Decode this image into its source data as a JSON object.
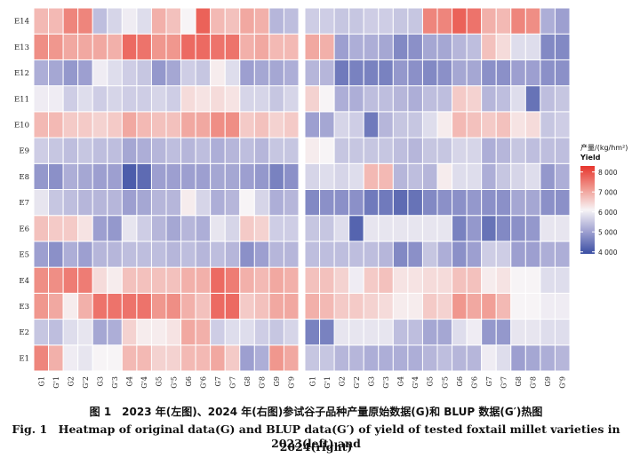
{
  "chart_data": [
    {
      "type": "heatmap",
      "title": "2023",
      "position": "left",
      "x_categories": [
        "G1",
        "G'1",
        "G2",
        "G'2",
        "G3",
        "G'3",
        "G4",
        "G'4",
        "G5",
        "G'5",
        "G6",
        "G'6",
        "G7",
        "G'7",
        "G8",
        "G'8",
        "G9",
        "G'9"
      ],
      "y_categories": [
        "E1",
        "E2",
        "E3",
        "E4",
        "E5",
        "E6",
        "E7",
        "E8",
        "E9",
        "E10",
        "E11",
        "E12",
        "E13",
        "E14"
      ],
      "values": [
        [
          7400,
          6900,
          6000,
          5900,
          6100,
          6100,
          6800,
          6800,
          6500,
          6500,
          6800,
          6800,
          7000,
          6600,
          5000,
          5200,
          7200,
          7000
        ],
        [
          5500,
          5400,
          5800,
          5900,
          5100,
          5200,
          6500,
          6200,
          6200,
          6300,
          7000,
          6900,
          5600,
          5800,
          5800,
          5600,
          5500,
          5700
        ],
        [
          7200,
          7000,
          6200,
          6900,
          7600,
          7600,
          7600,
          7600,
          7200,
          7300,
          6900,
          6700,
          7700,
          7700,
          6600,
          6700,
          7000,
          7000
        ],
        [
          7300,
          7300,
          7500,
          7500,
          6400,
          6200,
          6700,
          6700,
          6700,
          6700,
          6900,
          6900,
          7700,
          7500,
          6900,
          6800,
          7000,
          6900
        ],
        [
          5000,
          4800,
          5200,
          5000,
          5300,
          5300,
          5400,
          5400,
          5400,
          5300,
          5400,
          5300,
          5400,
          5300,
          4800,
          5000,
          5300,
          5300
        ],
        [
          6700,
          6600,
          6600,
          6300,
          5000,
          4900,
          5900,
          5600,
          5300,
          5100,
          5300,
          5200,
          5900,
          5700,
          6600,
          6500,
          5600,
          5600
        ],
        [
          5900,
          5500,
          5400,
          5300,
          5300,
          5300,
          5000,
          5100,
          5300,
          5300,
          6200,
          5700,
          5200,
          5300,
          6100,
          5700,
          5200,
          5300
        ],
        [
          4900,
          4800,
          5200,
          5100,
          5000,
          5000,
          4100,
          4300,
          5000,
          5000,
          5000,
          5000,
          5100,
          5100,
          5000,
          4900,
          4600,
          4800
        ],
        [
          5600,
          5500,
          5400,
          5500,
          5400,
          5400,
          5100,
          5200,
          5300,
          5400,
          5300,
          5400,
          5200,
          5300,
          5400,
          5300,
          5500,
          5500
        ],
        [
          6800,
          6800,
          6600,
          6600,
          6500,
          6600,
          7000,
          6800,
          6700,
          6700,
          7000,
          7000,
          7300,
          7300,
          6600,
          6700,
          6500,
          6600
        ],
        [
          6000,
          6000,
          5600,
          5800,
          5600,
          5700,
          5600,
          5600,
          5700,
          5600,
          6400,
          6300,
          6400,
          6300,
          5700,
          5700,
          5500,
          5700
        ],
        [
          5200,
          5100,
          4900,
          5000,
          6000,
          5800,
          5600,
          5500,
          4900,
          5100,
          5600,
          5500,
          6200,
          5800,
          5000,
          5100,
          5100,
          5200
        ],
        [
          7300,
          7200,
          7000,
          7000,
          7000,
          6900,
          7700,
          7600,
          7200,
          7200,
          7700,
          7700,
          7600,
          7600,
          6900,
          7000,
          6800,
          6800
        ],
        [
          6800,
          6800,
          7400,
          7400,
          5400,
          5700,
          6000,
          5800,
          6900,
          6700,
          6100,
          7800,
          6800,
          6700,
          7000,
          6900,
          5300,
          5400
        ]
      ]
    },
    {
      "type": "heatmap",
      "title": "2024",
      "position": "right",
      "x_categories": [
        "G1",
        "G'1",
        "G2",
        "G'2",
        "G3",
        "G'3",
        "G4",
        "G'4",
        "G5",
        "G'5",
        "G6",
        "G'6",
        "G7",
        "G'7",
        "G8",
        "G'8",
        "G9",
        "G'9"
      ],
      "y_categories": [
        "E1",
        "E2",
        "E3",
        "E4",
        "E5",
        "E6",
        "E7",
        "E8",
        "E9",
        "E10",
        "E11",
        "E12",
        "E13",
        "E14"
      ],
      "values": [
        [
          5500,
          5500,
          5300,
          5300,
          5200,
          5200,
          5200,
          5200,
          5300,
          5400,
          5300,
          5300,
          6000,
          5800,
          5000,
          5100,
          5200,
          5300
        ],
        [
          4600,
          4600,
          5900,
          5900,
          5900,
          5900,
          5400,
          5400,
          5100,
          5100,
          5800,
          6000,
          4900,
          4900,
          5900,
          5900,
          5800,
          5800
        ],
        [
          6900,
          6800,
          6600,
          6600,
          6500,
          6400,
          6200,
          6200,
          6600,
          6500,
          7200,
          7000,
          7100,
          6800,
          6100,
          6100,
          6000,
          6000
        ],
        [
          6700,
          6700,
          6500,
          6000,
          6600,
          6700,
          6300,
          6300,
          6400,
          6400,
          6700,
          6700,
          6200,
          6300,
          6100,
          6100,
          5800,
          5800
        ],
        [
          5400,
          5400,
          5400,
          5400,
          5400,
          5300,
          4700,
          4800,
          5500,
          5200,
          4800,
          5000,
          5600,
          5600,
          5000,
          5000,
          5200,
          5200
        ],
        [
          5500,
          5500,
          5800,
          4200,
          5900,
          5900,
          5900,
          5900,
          5900,
          5900,
          4600,
          4900,
          4400,
          4700,
          4800,
          4900,
          5900,
          5900
        ],
        [
          4700,
          4800,
          4800,
          4800,
          4500,
          4500,
          4300,
          4400,
          4700,
          4800,
          4800,
          4900,
          4800,
          4800,
          5100,
          5100,
          4800,
          4800
        ],
        [
          5700,
          5800,
          5700,
          5800,
          6800,
          6800,
          5300,
          5400,
          5300,
          6200,
          5800,
          5800,
          5200,
          5500,
          5700,
          5800,
          4900,
          5200
        ],
        [
          6200,
          6100,
          5500,
          5500,
          5500,
          5500,
          5400,
          5300,
          5500,
          5500,
          5700,
          5700,
          5200,
          5300,
          5500,
          5400,
          5400,
          5400
        ],
        [
          5000,
          5100,
          5700,
          5600,
          4500,
          5300,
          5500,
          5500,
          5800,
          6200,
          6800,
          6700,
          6600,
          6700,
          6300,
          6400,
          5500,
          5600
        ],
        [
          6500,
          6100,
          5200,
          5200,
          5400,
          5400,
          5300,
          5200,
          5400,
          5400,
          6600,
          6500,
          5300,
          5400,
          5800,
          4400,
          5400,
          5500
        ],
        [
          5300,
          5300,
          4500,
          4600,
          4600,
          4600,
          4900,
          4800,
          4700,
          4800,
          5100,
          5100,
          4800,
          4800,
          5000,
          5000,
          4800,
          4800
        ],
        [
          7000,
          6900,
          5000,
          5200,
          5200,
          5100,
          4700,
          4800,
          5100,
          5100,
          5300,
          5400,
          6700,
          6400,
          5800,
          5800,
          4700,
          4700
        ],
        [
          5600,
          5600,
          5500,
          5500,
          5600,
          5600,
          5500,
          5500,
          7400,
          7400,
          7800,
          7600,
          6900,
          6800,
          7400,
          7300,
          5200,
          5000
        ]
      ]
    }
  ],
  "colorbar": {
    "title": "产量/(kg/hm²)",
    "subtitle": "Yield",
    "ticks": [
      8000,
      7000,
      6000,
      5000,
      4000
    ],
    "min": 3900,
    "max": 8300,
    "stops": [
      "#3a4ea3",
      "#9d9fd0",
      "#f7f4f6",
      "#f0978e",
      "#e7352d"
    ]
  },
  "caption": {
    "line1": "图 1　2023 年(左图)、2024 年(右图)参试谷子品种产量原始数据(G)和 BLUP 数据(G′)热图",
    "line2": "Fig. 1　Heatmap of original data(G) and BLUP data(G′) of yield of tested foxtail millet varieties in 2023(left) and",
    "line3": "2024(right)"
  }
}
